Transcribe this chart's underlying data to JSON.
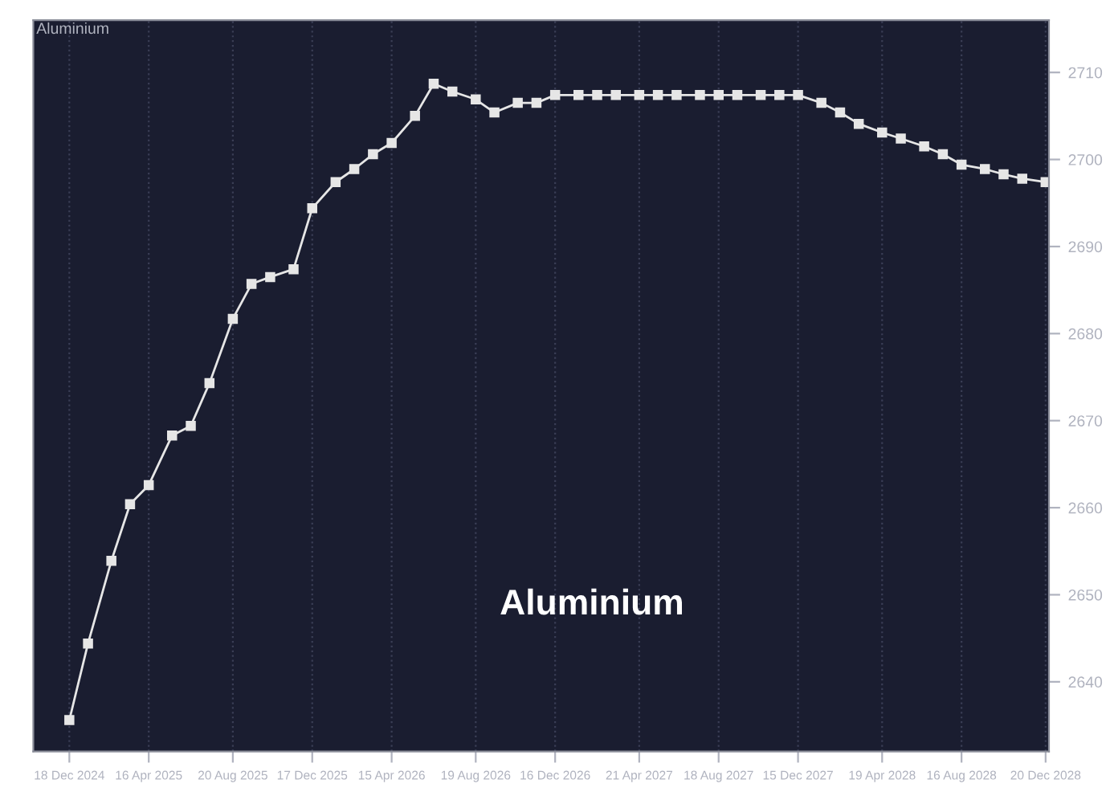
{
  "chart_data": {
    "type": "line",
    "title": "Aluminium",
    "annotations": [
      "Aluminium"
    ],
    "x": [
      "2024-12-18",
      "2025-01-15",
      "2025-02-19",
      "2025-03-19",
      "2025-04-16",
      "2025-05-21",
      "2025-06-18",
      "2025-07-16",
      "2025-08-20",
      "2025-09-17",
      "2025-10-15",
      "2025-11-19",
      "2025-12-17",
      "2026-01-21",
      "2026-02-18",
      "2026-03-18",
      "2026-04-15",
      "2026-05-20",
      "2026-06-17",
      "2026-07-15",
      "2026-08-19",
      "2026-09-16",
      "2026-10-21",
      "2026-11-18",
      "2026-12-16",
      "2027-01-20",
      "2027-02-17",
      "2027-03-17",
      "2027-04-21",
      "2027-05-19",
      "2027-06-16",
      "2027-07-21",
      "2027-08-18",
      "2027-09-15",
      "2027-10-20",
      "2027-11-17",
      "2027-12-15",
      "2028-01-19",
      "2028-02-16",
      "2028-03-15",
      "2028-04-19",
      "2028-05-17",
      "2028-06-21",
      "2028-07-19",
      "2028-08-16",
      "2028-09-20",
      "2028-10-18",
      "2028-11-15",
      "2028-12-20"
    ],
    "series": [
      {
        "color": "#e6e6e6",
        "values": [
          2635.6,
          2644.4,
          2653.9,
          2660.4,
          2662.6,
          2668.3,
          2669.4,
          2674.3,
          2681.7,
          2685.7,
          2686.5,
          2687.4,
          2694.4,
          2697.4,
          2698.9,
          2700.6,
          2701.9,
          2705.0,
          2708.7,
          2707.8,
          2706.9,
          2705.4,
          2706.5,
          2706.5,
          2707.4,
          2707.4,
          2707.4,
          2707.4,
          2707.4,
          2707.4,
          2707.4,
          2707.4,
          2707.4,
          2707.4,
          2707.4,
          2707.4,
          2707.4,
          2706.5,
          2705.4,
          2704.1,
          2703.1,
          2702.4,
          2701.5,
          2700.6,
          2699.4,
          2698.9,
          2698.3,
          2697.8,
          2697.4
        ]
      }
    ],
    "xlim": [
      "2024-10-25",
      "2028-12-25"
    ],
    "ylim": [
      2632,
      2716
    ],
    "xticks": [
      {
        "value": "2024-12-18",
        "label": "18 Dec 2024"
      },
      {
        "value": "2025-04-16",
        "label": "16 Apr 2025"
      },
      {
        "value": "2025-08-20",
        "label": "20 Aug 2025"
      },
      {
        "value": "2025-12-17",
        "label": "17 Dec 2025"
      },
      {
        "value": "2026-04-15",
        "label": "15 Apr 2026"
      },
      {
        "value": "2026-08-19",
        "label": "19 Aug 2026"
      },
      {
        "value": "2026-12-16",
        "label": "16 Dec 2026"
      },
      {
        "value": "2027-04-21",
        "label": "21 Apr 2027"
      },
      {
        "value": "2027-08-18",
        "label": "18 Aug 2027"
      },
      {
        "value": "2027-12-15",
        "label": "15 Dec 2027"
      },
      {
        "value": "2028-04-19",
        "label": "19 Apr 2028"
      },
      {
        "value": "2028-08-16",
        "label": "16 Aug 2028"
      },
      {
        "value": "2028-12-20",
        "label": "20 Dec 2028"
      }
    ],
    "yticks": [
      2640,
      2650,
      2660,
      2670,
      2680,
      2690,
      2700,
      2710
    ],
    "grid": "x",
    "marker": "square",
    "line_style": "solid"
  }
}
